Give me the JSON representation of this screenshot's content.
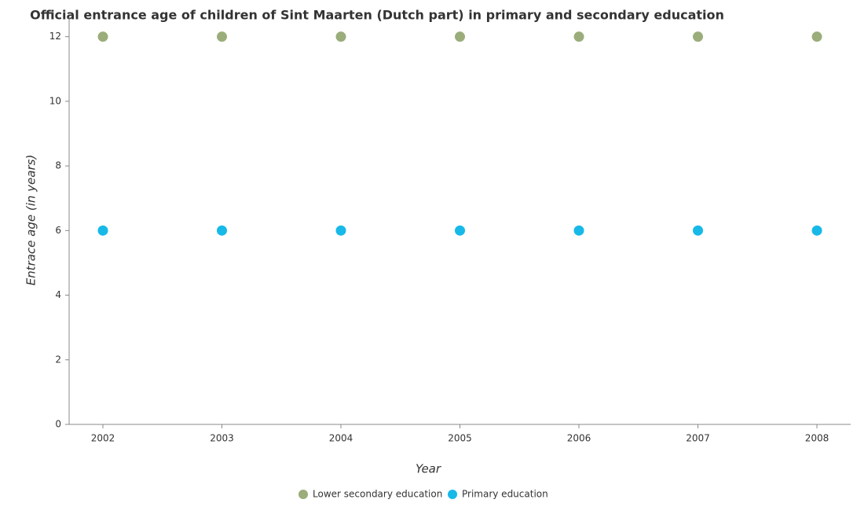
{
  "chart_data": {
    "type": "scatter",
    "title": "Official entrance age of children of Sint Maarten (Dutch part) in primary and secondary education",
    "x_label": "Year",
    "y_label": "Entrace age (in  years)",
    "categories": [
      "2002",
      "2003",
      "2004",
      "2005",
      "2006",
      "2007",
      "2008"
    ],
    "series": [
      {
        "name": "Lower secondary education",
        "color": "#9aad7a",
        "values": [
          12,
          12,
          12,
          12,
          12,
          12,
          12
        ]
      },
      {
        "name": "Primary education",
        "color": "#17b9e8",
        "values": [
          6,
          6,
          6,
          6,
          6,
          6,
          6
        ]
      }
    ],
    "ylim": [
      0,
      12.6
    ],
    "yticks": [
      0,
      2,
      4,
      6,
      8,
      10,
      12
    ],
    "grid": false,
    "legend": "bottom"
  }
}
